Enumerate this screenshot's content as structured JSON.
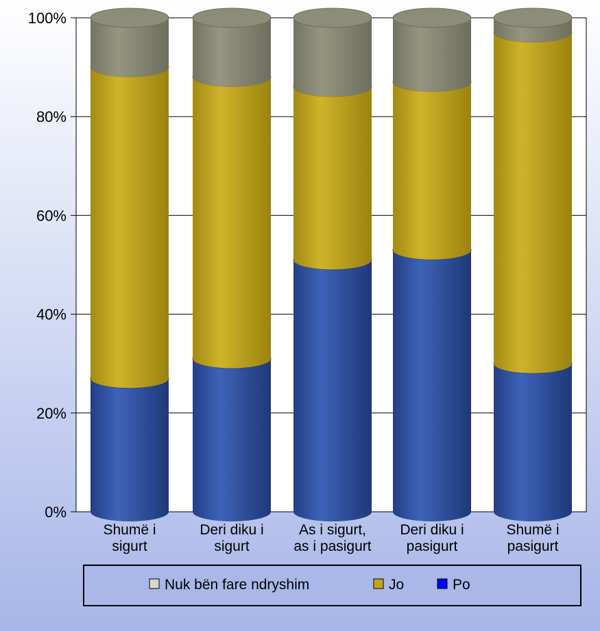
{
  "chart_data": {
    "type": "bar",
    "stacked": true,
    "style": "3d-cylinder",
    "categories": [
      [
        "Shumë i",
        "sigurt"
      ],
      [
        "Deri diku i",
        "sigurt"
      ],
      [
        "As i sigurt,",
        "as i pasigurt"
      ],
      [
        "Deri diku i",
        "pasigurt"
      ],
      [
        "Shumë i",
        "pasigurt"
      ]
    ],
    "series": [
      {
        "name": "Po",
        "values": [
          27,
          31,
          51,
          53,
          30
        ],
        "color": "#2e4f9e"
      },
      {
        "name": "Jo",
        "values": [
          63,
          57,
          35,
          34,
          67
        ],
        "color": "#c0a51c"
      },
      {
        "name": "Nuk bën fare ndryshim",
        "values": [
          10,
          12,
          14,
          13,
          3
        ],
        "color": "#8a8a75"
      }
    ],
    "ylim": [
      0,
      100
    ],
    "yticks": [
      "0%",
      "20%",
      "40%",
      "60%",
      "80%",
      "100%"
    ],
    "grid": true,
    "legend": {
      "placement": "bottom",
      "entries": [
        {
          "name": "Nuk bën fare ndryshim",
          "color": "#d8d8c8"
        },
        {
          "name": "Jo",
          "color": "#c0a51c"
        },
        {
          "name": "Po",
          "color": "#0000ff"
        }
      ]
    },
    "colors": {
      "background_top": "#ffffff",
      "background_bottom": "#a7b6e8",
      "plot_background": "#ffffff",
      "grid": "#000000"
    }
  }
}
